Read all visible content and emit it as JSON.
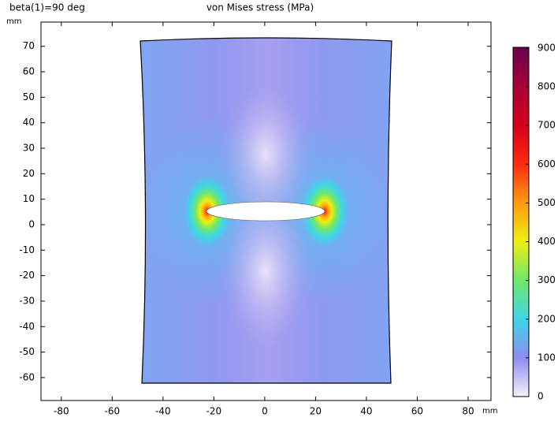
{
  "chart_data": {
    "type": "surface",
    "title": "von Mises stress (MPa)",
    "parameter_label": "beta(1)=90 deg",
    "x_unit": "mm",
    "y_unit": "mm",
    "xlim": [
      -88,
      89
    ],
    "ylim": [
      -69,
      79.5
    ],
    "xticks": [
      -80,
      -60,
      -40,
      -20,
      0,
      20,
      40,
      60,
      80
    ],
    "yticks": [
      -60,
      -50,
      -40,
      -30,
      -20,
      -10,
      0,
      10,
      20,
      30,
      40,
      50,
      60,
      70
    ],
    "clim": [
      0,
      900
    ],
    "cticks": [
      0,
      100,
      200,
      300,
      400,
      500,
      600,
      700,
      800,
      900
    ],
    "colormap": [
      "#f4f0fb",
      "#8c8cf0",
      "#3fd6e8",
      "#6fe86a",
      "#f0ee10",
      "#ff9a10",
      "#ff2a10",
      "#d4001e",
      "#a80038",
      "#6a0050"
    ]
  }
}
